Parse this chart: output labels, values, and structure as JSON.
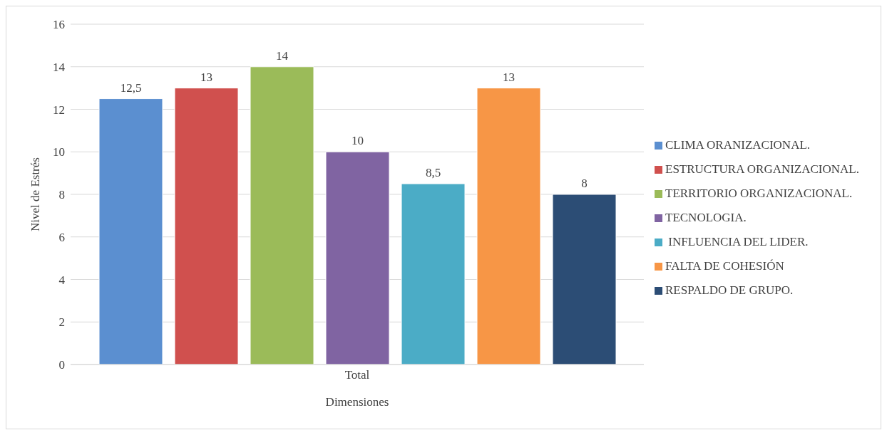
{
  "chart_data": {
    "type": "bar",
    "xlabel": "Dimensiones",
    "ylabel": "Nivel de Estrés",
    "categories": [
      "Total"
    ],
    "series": [
      {
        "name": "CLIMA ORANIZACIONAL.",
        "color": "#5b8fd0",
        "values": [
          12.5
        ],
        "value_labels": [
          "12,5"
        ]
      },
      {
        "name": "ESTRUCTURA ORGANIZACIONAL.",
        "color": "#d0504e",
        "values": [
          13
        ],
        "value_labels": [
          "13"
        ]
      },
      {
        "name": "TERRITORIO ORGANIZACIONAL.",
        "color": "#9bbb59",
        "values": [
          14
        ],
        "value_labels": [
          "14"
        ]
      },
      {
        "name": "TECNOLOGIA.",
        "color": "#8064a2",
        "values": [
          10
        ],
        "value_labels": [
          "10"
        ]
      },
      {
        "name": " INFLUENCIA DEL LIDER.",
        "color": "#4bacc6",
        "values": [
          8.5
        ],
        "value_labels": [
          "8,5"
        ]
      },
      {
        "name": "FALTA DE COHESIÓN",
        "color": "#f79646",
        "values": [
          13
        ],
        "value_labels": [
          "13"
        ]
      },
      {
        "name": "RESPALDO DE GRUPO.",
        "color": "#2c4d75",
        "values": [
          8
        ],
        "value_labels": [
          "8"
        ]
      }
    ],
    "ylim": [
      0,
      16
    ],
    "yticks": [
      0,
      2,
      4,
      6,
      8,
      10,
      12,
      14,
      16
    ],
    "grid": "y",
    "legend": "right"
  }
}
